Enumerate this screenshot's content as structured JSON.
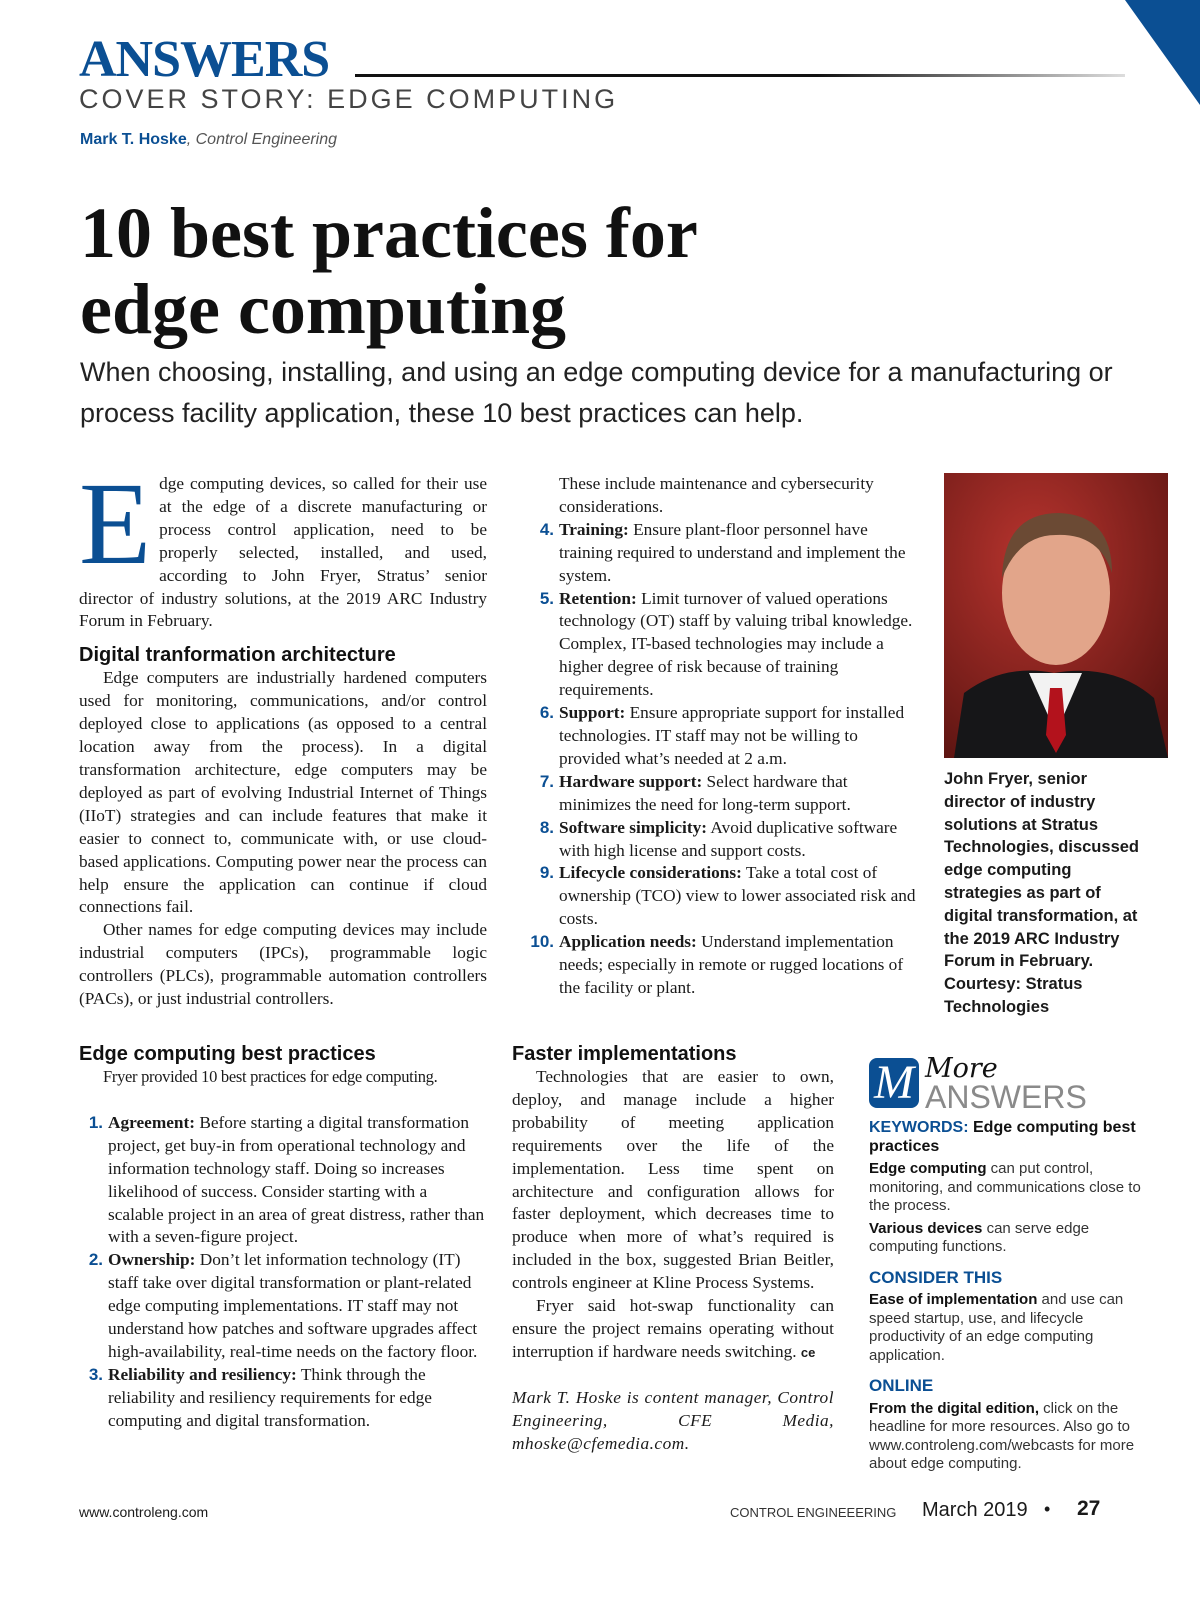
{
  "header": {
    "section": "ANSWERS",
    "cover_story": "COVER STORY: EDGE COMPUTING",
    "author": "Mark T. Hoske",
    "publication": ", Control Engineering"
  },
  "article": {
    "title_line1": "10 best practices for",
    "title_line2": "edge computing",
    "deck": "When choosing, installing, and using an edge computing device for a manufacturing or process facility application, these 10 best practices can help.",
    "drop_cap": "E",
    "intro": "dge computing devices, so called for their use at the edge of a discrete manufacturing or process control application, need to be properly selected, installed, and used, according to John Fryer, Stratus’ senior director of industry solutions, at the 2019 ARC Industry Forum in February.",
    "section1_heading": "Digital tranformation architecture",
    "section1_p1": "Edge computers are industrially hardened computers used for monitoring, communications, and/or control deployed close to applications (as opposed to a central location away from the process). In a digital transformation architecture, edge computers may be deployed as part of evolving Industrial Internet of Things (IIoT) strategies and can include features that make it easier to connect to, communicate with, or use cloud-based applications. Computing power near the process can help ensure the application can continue if cloud connections fail.",
    "section1_p2": "Other names for edge computing devices may include industrial computers (IPCs), programmable logic controllers (PLCs), programmable automation controllers (PACs), or just industrial controllers.",
    "section2_heading": "Edge computing best practices",
    "section2_intro": "Fryer provided 10 best practices for edge computing.",
    "practices": [
      {
        "num": "1.",
        "term": "Agreement:",
        "text": " Before starting a digital transformation project, get buy-in from operational technology and information technology staff. Doing so increases likelihood of success. Consider starting with a scalable project in an area of great distress, rather than with a seven-figure project."
      },
      {
        "num": "2.",
        "term": "Ownership:",
        "text": " Don’t let information technology (IT) staff take over digital transformation or plant-related edge computing implementations. IT staff may not understand how patches and software upgrades affect high-availability, real-time needs on the factory floor."
      },
      {
        "num": "3.",
        "term": "Reliability and resiliency:",
        "text": " Think through the reliability and resiliency requirements for edge computing and digital transformation."
      },
      {
        "num": "",
        "term": "",
        "text": "These include maintenance and cybersecurity considerations."
      },
      {
        "num": "4.",
        "term": "Training:",
        "text": " Ensure plant-floor personnel have training required to understand and implement the system."
      },
      {
        "num": "5.",
        "term": "Retention:",
        "text": " Limit turnover of valued operations technology (OT) staff by valuing tribal knowledge. Complex, IT-based technologies may include a higher degree of risk because of training requirements."
      },
      {
        "num": "6.",
        "term": "Support:",
        "text": " Ensure appropriate support for installed technologies. IT staff may not be willing to provided what’s needed at 2 a.m."
      },
      {
        "num": "7.",
        "term": "Hardware support:",
        "text": " Select hardware that minimizes the need for long-term support."
      },
      {
        "num": "8.",
        "term": "Software simplicity:",
        "text": " Avoid duplicative software with high license and support costs."
      },
      {
        "num": "9.",
        "term": "Lifecycle considerations:",
        "text": " Take a total cost of ownership (TCO) view to lower associated risk and costs."
      },
      {
        "num": "10.",
        "term": "Application needs:",
        "text": " Understand implementation needs; especially in remote or rugged locations of the facility or plant."
      }
    ],
    "section3_heading": "Faster implementations",
    "section3_p1": "Technologies that are easier to own, deploy, and manage include a higher probability of meeting application requirements over the life of the implementation. Less time spent on architecture and configuration allows for faster deployment, which decreases time to produce when more of what’s required is included in the box, suggested Brian Beitler, controls engineer at Kline Process Systems.",
    "section3_p2": "Fryer said hot-swap functionality can ensure the project remains operating without interruption if hardware needs switching.",
    "end_mark": "ce",
    "bio": "Mark T. Hoske is content manager, Control Engineering, CFE Media, mhoske@cfemedia.com.",
    "photo_caption": "John Fryer, senior director of industry solutions at Stratus Technologies, discussed edge computing strategies as part of digital transformation, at the 2019 ARC Industry Forum in February. Courtesy: Stratus Technologies"
  },
  "sidebar": {
    "logo_letter": "M",
    "logo_more": "More",
    "logo_answers": "ANSWERS",
    "keywords_label": "KEYWORDS:",
    "keywords": " Edge computing best practices",
    "k1_bold": "Edge computing",
    "k1_text": " can put control, monitoring, and communications close to the process.",
    "k2_bold": "Various devices",
    "k2_text": " can serve edge computing functions.",
    "consider_heading": "CONSIDER THIS",
    "c_bold": "Ease of implementation",
    "c_text": " and use can speed startup, use, and lifecycle productivity of an edge computing application.",
    "online_heading": "ONLINE",
    "o_bold": "From the digital edition,",
    "o_text": " click on the headline for more resources. Also go to www.controleng.com/webcasts for more about edge computing."
  },
  "footer": {
    "url": "www.controleng.com",
    "magazine": "CONTROL ENGINEEERING",
    "date": "March 2019",
    "bullet": "•",
    "page": "27"
  },
  "colors": {
    "brand_blue": "#0b4f93"
  }
}
